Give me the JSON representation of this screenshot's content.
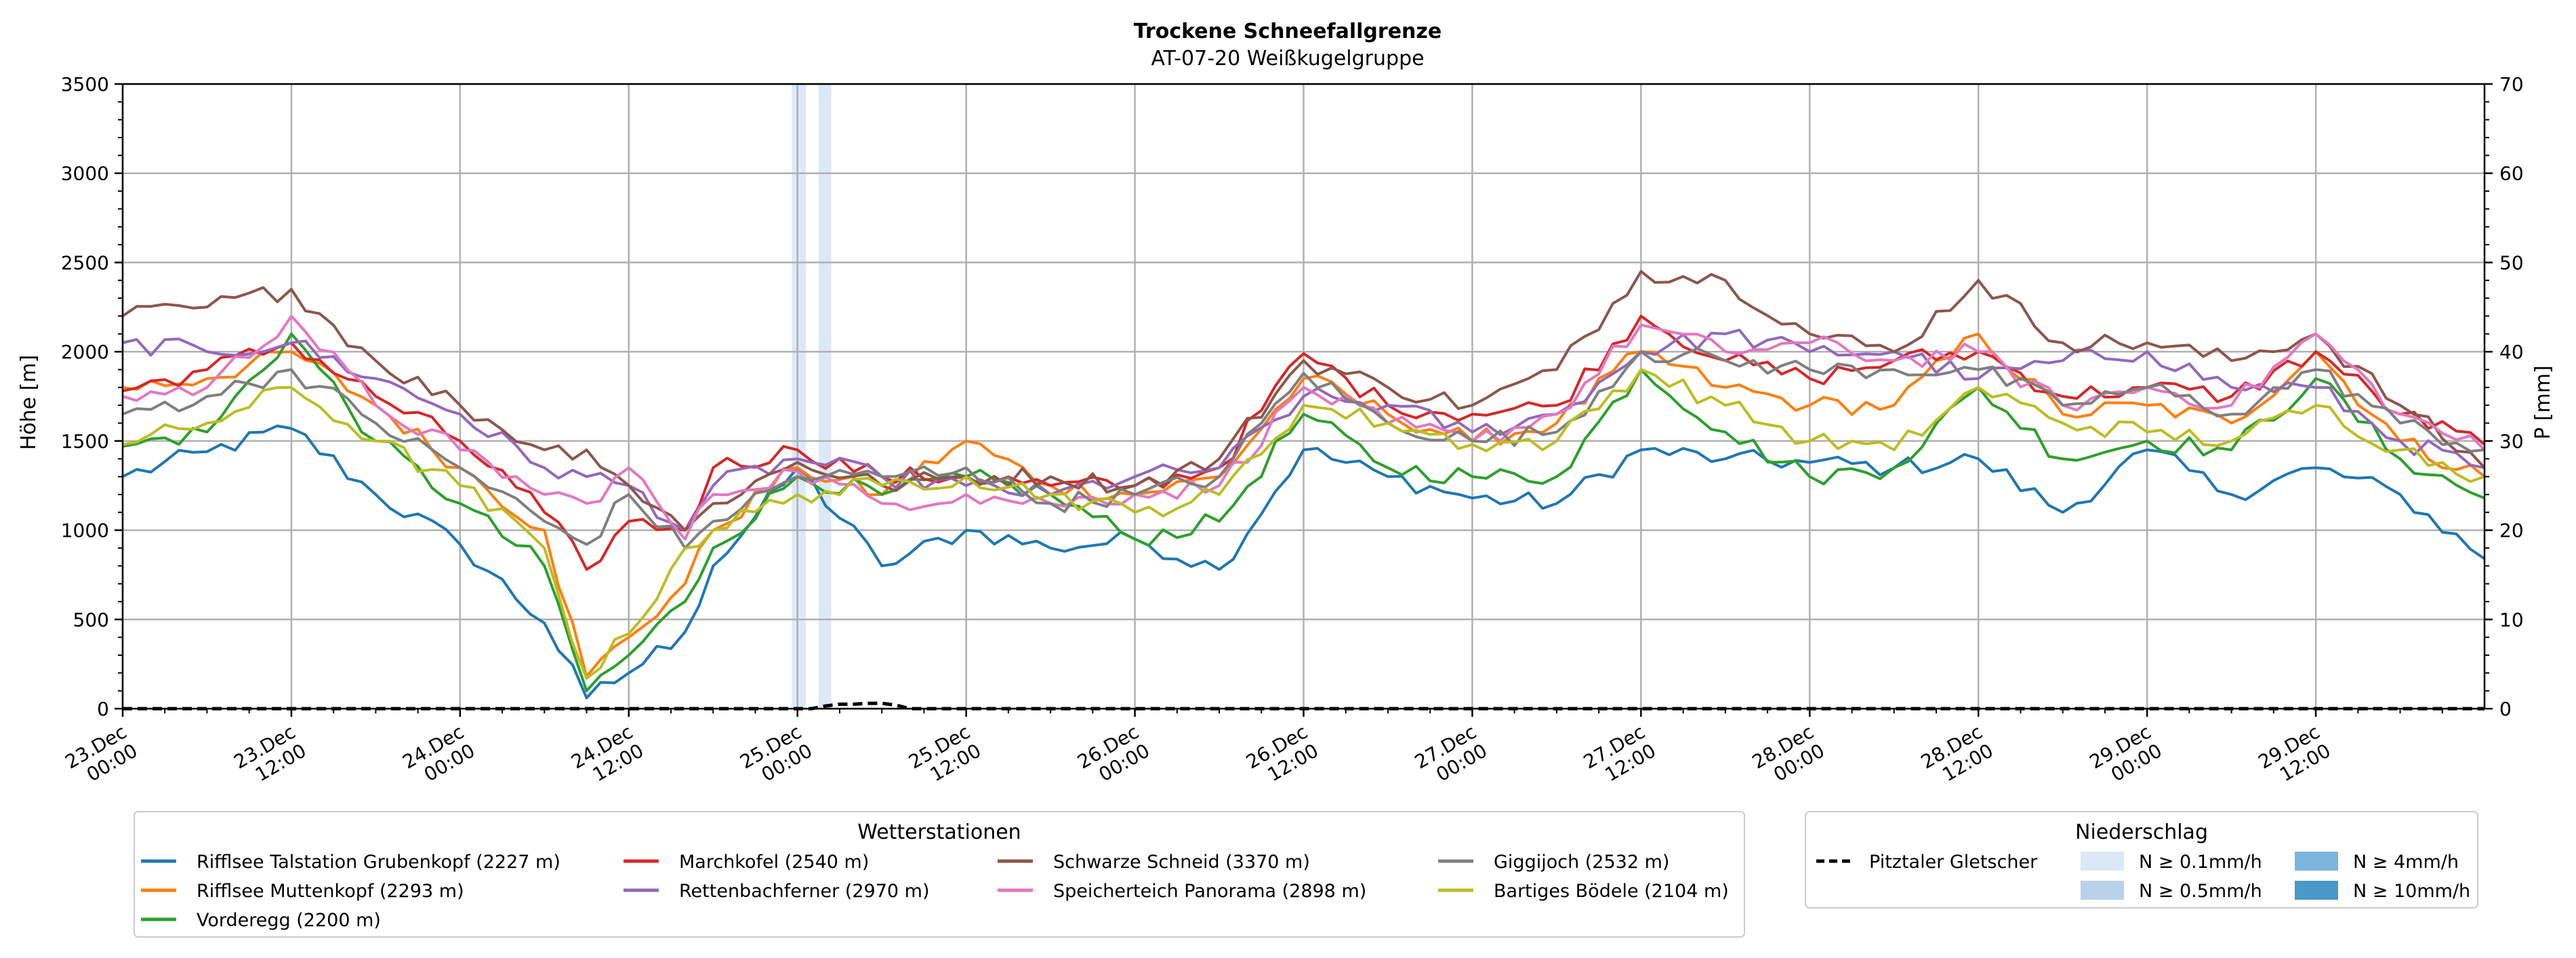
{
  "chart_data": {
    "type": "line",
    "title": "Trockene Schneefallgrenze",
    "subtitle": "AT-07-20 Weißkugelgruppe",
    "ylabel": "Höhe [m]",
    "y2label": "P [mm]",
    "ylim": [
      0,
      3500
    ],
    "y2lim": [
      0,
      70
    ],
    "yticks": [
      0,
      500,
      1000,
      1500,
      2000,
      2500,
      3000,
      3500
    ],
    "y2ticks": [
      0,
      10,
      20,
      30,
      40,
      50,
      60,
      70
    ],
    "xlim_hours": [
      0,
      168
    ],
    "xticks": [
      {
        "hour": 0,
        "line1": "23.Dec",
        "line2": "00:00"
      },
      {
        "hour": 12,
        "line1": "23.Dec",
        "line2": "12:00"
      },
      {
        "hour": 24,
        "line1": "24.Dec",
        "line2": "00:00"
      },
      {
        "hour": 36,
        "line1": "24.Dec",
        "line2": "12:00"
      },
      {
        "hour": 48,
        "line1": "25.Dec",
        "line2": "00:00"
      },
      {
        "hour": 60,
        "line1": "25.Dec",
        "line2": "12:00"
      },
      {
        "hour": 72,
        "line1": "26.Dec",
        "line2": "00:00"
      },
      {
        "hour": 84,
        "line1": "26.Dec",
        "line2": "12:00"
      },
      {
        "hour": 96,
        "line1": "27.Dec",
        "line2": "00:00"
      },
      {
        "hour": 108,
        "line1": "27.Dec",
        "line2": "12:00"
      },
      {
        "hour": 120,
        "line1": "28.Dec",
        "line2": "00:00"
      },
      {
        "hour": 132,
        "line1": "28.Dec",
        "line2": "12:00"
      },
      {
        "hour": 144,
        "line1": "29.Dec",
        "line2": "00:00"
      },
      {
        "hour": 156,
        "line1": "29.Dec",
        "line2": "12:00"
      }
    ],
    "grid": true,
    "series_knot_hours": [
      0,
      6,
      12,
      18,
      24,
      30,
      33,
      36,
      40,
      42,
      48,
      54,
      60,
      66,
      72,
      78,
      84,
      90,
      96,
      102,
      108,
      114,
      120,
      126,
      132,
      138,
      144,
      150,
      156,
      162,
      168
    ],
    "series": [
      {
        "name": "Rifflsee Talstation Grubenkopf (2227 m)",
        "color": "#1f77b4",
        "values": [
          1300,
          1440,
          1570,
          1200,
          920,
          480,
          60,
          200,
          430,
          800,
          1350,
          800,
          1000,
          900,
          950,
          780,
          1450,
          1300,
          1180,
          1150,
          1450,
          1400,
          1380,
          1350,
          1400,
          1100,
          1450,
          1200,
          1350,
          1200,
          840
        ]
      },
      {
        "name": "Rifflsee Muttenkopf (2293 m)",
        "color": "#ff7f0e",
        "values": [
          1800,
          1850,
          2000,
          1700,
          1350,
          1000,
          180,
          400,
          700,
          1000,
          1350,
          1200,
          1500,
          1250,
          1200,
          1300,
          1850,
          1650,
          1500,
          1600,
          2000,
          1800,
          1700,
          1700,
          2100,
          1650,
          1700,
          1600,
          2000,
          1500,
          1300
        ]
      },
      {
        "name": "Vorderegg (2200 m)",
        "color": "#2ca02c",
        "values": [
          1470,
          1550,
          2100,
          1500,
          1150,
          800,
          100,
          300,
          600,
          900,
          1300,
          1200,
          1300,
          1200,
          950,
          1050,
          1650,
          1350,
          1300,
          1300,
          1900,
          1550,
          1300,
          1350,
          1800,
          1400,
          1500,
          1450,
          1850,
          1400,
          1180
        ]
      },
      {
        "name": "Marchkofel (2540 m)",
        "color": "#d62728",
        "values": [
          1780,
          1900,
          2050,
          1750,
          1500,
          1100,
          780,
          1050,
          1000,
          1350,
          1450,
          1300,
          1300,
          1250,
          1250,
          1350,
          1990,
          1700,
          1650,
          1700,
          2200,
          1950,
          1850,
          1950,
          2000,
          1750,
          1800,
          1750,
          2000,
          1650,
          1480
        ]
      },
      {
        "name": "Rettenbachferner (2970 m)",
        "color": "#9467bd",
        "values": [
          2050,
          2000,
          2050,
          1850,
          1650,
          1350,
          1300,
          1250,
          1000,
          1250,
          1400,
          1300,
          1250,
          1200,
          1300,
          1350,
          1750,
          1700,
          1550,
          1650,
          2000,
          2100,
          2000,
          2000,
          1850,
          1950,
          2000,
          1800,
          1800,
          1500,
          1350
        ]
      },
      {
        "name": "Schwarze Schneid (3370 m)",
        "color": "#8c564b",
        "values": [
          2200,
          2250,
          2350,
          1950,
          1700,
          1450,
          1450,
          1250,
          1000,
          1150,
          1380,
          1250,
          1300,
          1300,
          1250,
          1400,
          1950,
          1800,
          1700,
          1900,
          2450,
          2400,
          2100,
          2000,
          2400,
          2050,
          2050,
          1950,
          2100,
          1700,
          1350
        ]
      },
      {
        "name": "Speicherteich Panorama (2898 m)",
        "color": "#e377c2",
        "values": [
          1750,
          1800,
          2200,
          1700,
          1450,
          1200,
          1150,
          1350,
          950,
          1200,
          1330,
          1150,
          1200,
          1150,
          1200,
          1250,
          1800,
          1600,
          1500,
          1650,
          2150,
          2000,
          2050,
          1950,
          2000,
          1700,
          1800,
          1700,
          2100,
          1650,
          1450
        ]
      },
      {
        "name": "Giggijoch (2532 m)",
        "color": "#7f7f7f",
        "values": [
          1650,
          1750,
          1900,
          1600,
          1350,
          1050,
          920,
          1200,
          900,
          1050,
          1300,
          1300,
          1350,
          1150,
          1200,
          1300,
          1880,
          1600,
          1500,
          1550,
          2000,
          1950,
          1900,
          1900,
          1900,
          1700,
          1800,
          1650,
          1900,
          1600,
          1450
        ]
      },
      {
        "name": "Bartiges Bödele (2104 m)",
        "color": "#bcbd22",
        "values": [
          1480,
          1600,
          1800,
          1500,
          1250,
          900,
          170,
          420,
          900,
          1000,
          1200,
          1250,
          1300,
          1200,
          1100,
          1200,
          1700,
          1600,
          1480,
          1500,
          1900,
          1700,
          1500,
          1450,
          1800,
          1600,
          1550,
          1500,
          1700,
          1450,
          1300
        ]
      }
    ],
    "precipitation": {
      "name": "Pitztaler Gletscher",
      "color": "#000000",
      "knot_hours": [
        0,
        49,
        50,
        51,
        52,
        53,
        54,
        55,
        56,
        168
      ],
      "values": [
        0,
        0,
        0.3,
        0.5,
        0.5,
        0.6,
        0.6,
        0.4,
        0,
        0
      ]
    },
    "shaded_spans": [
      {
        "from_hour": 47.6,
        "to_hour": 48.6,
        "class": "N ≥ 0.1mm/h",
        "color": "#dce9f7"
      },
      {
        "from_hour": 49.5,
        "to_hour": 50.4,
        "class": "N ≥ 0.1mm/h",
        "color": "#dce9f7"
      }
    ],
    "legend_stations": {
      "title": "Wetterstationen",
      "placement": "bottom-left"
    },
    "legend_precip": {
      "title": "Niederschlag",
      "placement": "bottom-right",
      "classes": [
        {
          "label": "N ≥ 0.1mm/h",
          "color": "#dbe8f6"
        },
        {
          "label": "N ≥ 0.5mm/h",
          "color": "#b9d2ea"
        },
        {
          "label": "N ≥ 4mm/h",
          "color": "#7cb5dc"
        },
        {
          "label": "N ≥ 10mm/h",
          "color": "#4a98c9"
        }
      ]
    }
  }
}
